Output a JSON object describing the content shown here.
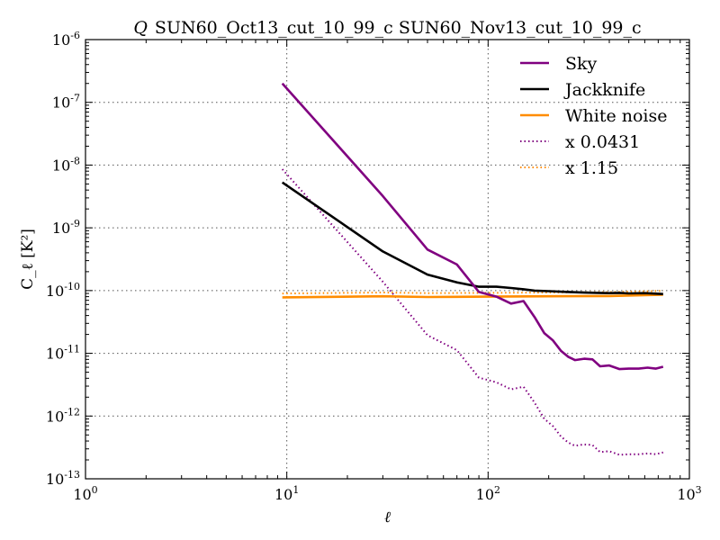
{
  "chart_data": {
    "type": "line",
    "title_prefix": "Q",
    "title": "SUN60_Oct13_cut_10_99_c SUN60_Nov13_cut_10_99_c",
    "xlabel": "ℓ",
    "ylabel": "C_ℓ [K²]",
    "xscale": "log",
    "yscale": "log",
    "xlim": [
      1,
      1000
    ],
    "ylim": [
      1e-13,
      1e-06
    ],
    "grid": true,
    "legend_position": "top-right",
    "x_ticks": [
      {
        "base": "10",
        "exp": "0"
      },
      {
        "base": "10",
        "exp": "1"
      },
      {
        "base": "10",
        "exp": "2"
      },
      {
        "base": "10",
        "exp": "3"
      }
    ],
    "y_ticks": [
      {
        "base": "10",
        "exp": "-13"
      },
      {
        "base": "10",
        "exp": "-12"
      },
      {
        "base": "10",
        "exp": "-11"
      },
      {
        "base": "10",
        "exp": "-10"
      },
      {
        "base": "10",
        "exp": "-9"
      },
      {
        "base": "10",
        "exp": "-8"
      },
      {
        "base": "10",
        "exp": "-7"
      },
      {
        "base": "10",
        "exp": "-6"
      }
    ],
    "series": [
      {
        "name": "Sky",
        "color": "#800080",
        "style": "solid",
        "x": [
          9.5,
          30,
          50,
          70,
          90,
          110,
          130,
          150,
          170,
          190,
          210,
          230,
          250,
          270,
          300,
          330,
          360,
          400,
          450,
          500,
          560,
          620,
          680,
          740
        ],
        "y": [
          2e-07,
          3.2e-09,
          4.5e-10,
          2.6e-10,
          9.5e-11,
          8e-11,
          6.2e-11,
          6.8e-11,
          3.8e-11,
          2.1e-11,
          1.6e-11,
          1.1e-11,
          8.8e-12,
          7.8e-12,
          8.2e-12,
          8e-12,
          6.2e-12,
          6.4e-12,
          5.6e-12,
          5.7e-12,
          5.7e-12,
          5.9e-12,
          5.7e-12,
          6.1e-12
        ]
      },
      {
        "name": "Jackknife",
        "color": "#000000",
        "style": "solid",
        "x": [
          9.5,
          30,
          50,
          70,
          90,
          110,
          130,
          150,
          170,
          200,
          250,
          300,
          350,
          400,
          450,
          500,
          600,
          740
        ],
        "y": [
          5.3e-09,
          4.2e-10,
          1.8e-10,
          1.35e-10,
          1.15e-10,
          1.15e-10,
          1.1e-10,
          1.05e-10,
          1e-10,
          9.8e-11,
          9.5e-11,
          9.3e-11,
          9.2e-11,
          9.1e-11,
          9.2e-11,
          9e-11,
          9.1e-11,
          8.8e-11
        ]
      },
      {
        "name": "White noise",
        "color": "#ff8c00",
        "style": "solid",
        "x": [
          9.5,
          30,
          50,
          100,
          200,
          400,
          740
        ],
        "y": [
          7.8e-11,
          8.1e-11,
          7.9e-11,
          8e-11,
          8.1e-11,
          8.2e-11,
          8.6e-11
        ]
      },
      {
        "name": "x 0.0431",
        "color": "#800080",
        "style": "dotted",
        "x": [
          9.5,
          30,
          50,
          70,
          90,
          110,
          130,
          150,
          170,
          190,
          210,
          230,
          250,
          270,
          300,
          330,
          360,
          400,
          450,
          500,
          560,
          620,
          680,
          740
        ],
        "y": [
          8.6e-09,
          1.38e-10,
          1.94e-11,
          1.12e-11,
          4.1e-12,
          3.45e-12,
          2.67e-12,
          2.93e-12,
          1.64e-12,
          9.05e-13,
          6.9e-13,
          4.74e-13,
          3.79e-13,
          3.36e-13,
          3.53e-13,
          3.45e-13,
          2.67e-13,
          2.76e-13,
          2.41e-13,
          2.46e-13,
          2.46e-13,
          2.54e-13,
          2.46e-13,
          2.63e-13
        ]
      },
      {
        "name": "x 1.15",
        "color": "#ff8c00",
        "style": "dotted",
        "x": [
          9.5,
          30,
          50,
          100,
          200,
          400,
          740
        ],
        "y": [
          8.97e-11,
          9.32e-11,
          9.09e-11,
          9.2e-11,
          9.32e-11,
          9.43e-11,
          9.89e-11
        ]
      }
    ]
  }
}
